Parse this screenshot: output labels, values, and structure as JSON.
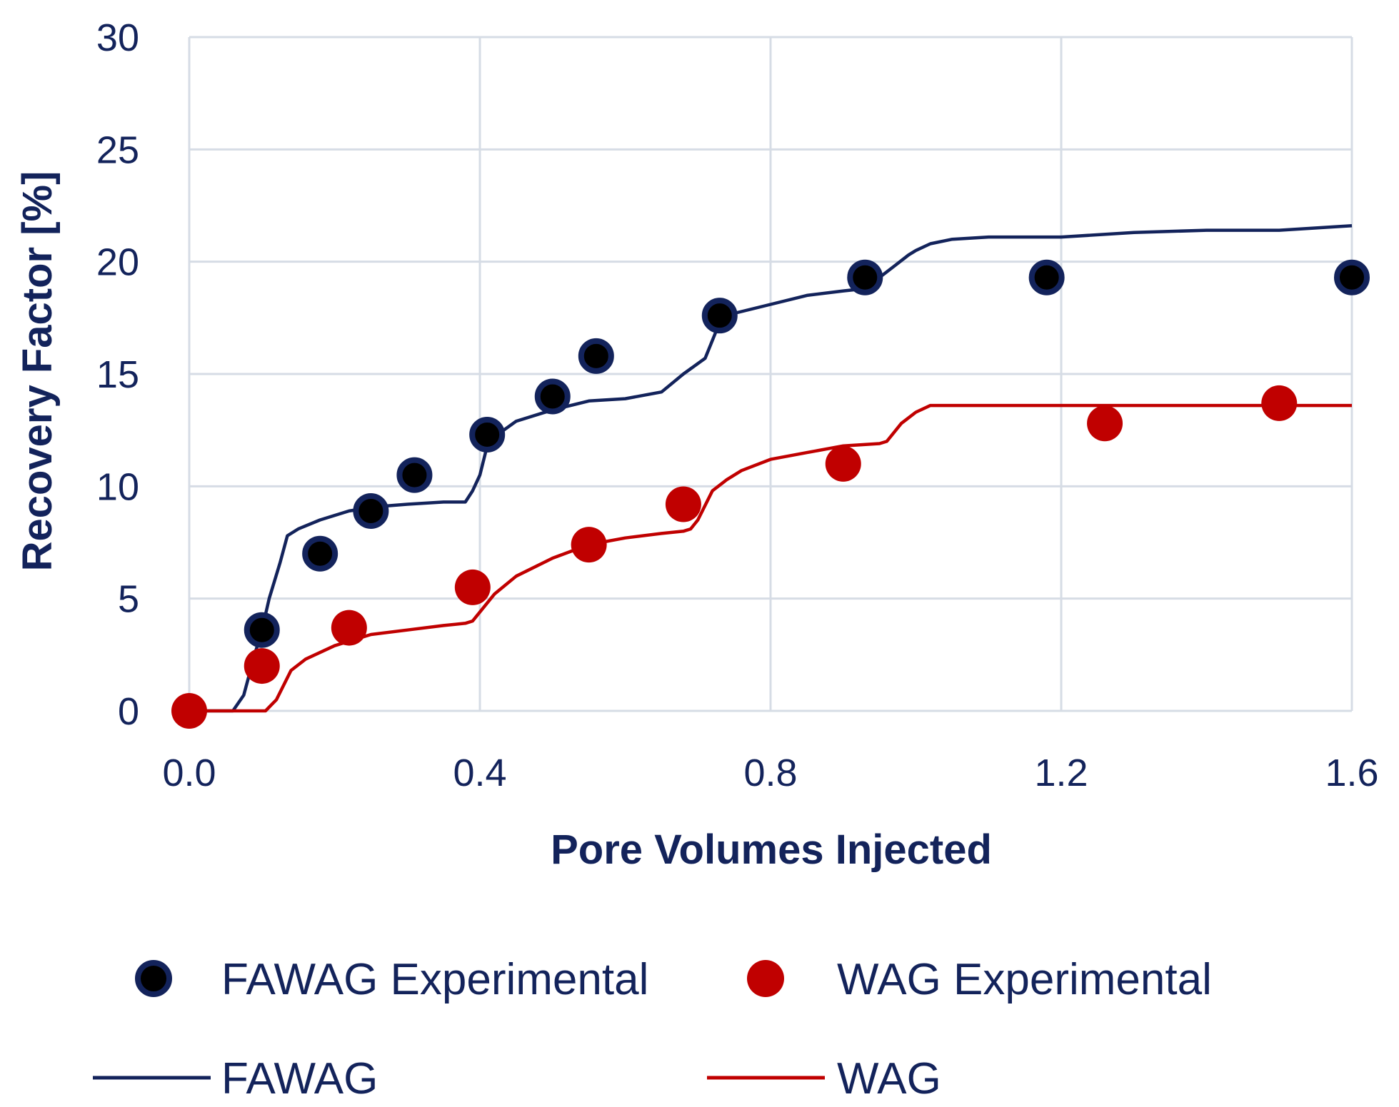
{
  "chart_data": {
    "type": "scatter",
    "xlabel": "Pore Volumes Injected",
    "ylabel": "Recovery Factor [%]",
    "xlim": [
      0,
      1.6
    ],
    "ylim": [
      0,
      30
    ],
    "xticks": [
      "0.0",
      "0.4",
      "0.8",
      "1.2",
      "1.6"
    ],
    "yticks": [
      "0",
      "5",
      "10",
      "15",
      "20",
      "25",
      "30"
    ],
    "xtick_values": [
      0,
      0.4,
      0.8,
      1.2,
      1.6
    ],
    "ytick_values": [
      0,
      5,
      10,
      15,
      20,
      25,
      30
    ],
    "grid": true,
    "legend_position": "bottom",
    "colors": {
      "fawag": "#13235b",
      "wag": "#c00000",
      "marker_center": "#000000",
      "grid": "#d6dce5"
    },
    "series": [
      {
        "name": "FAWAG Experimental",
        "kind": "markers",
        "color": "#13235b",
        "x": [
          0.1,
          0.18,
          0.25,
          0.31,
          0.41,
          0.5,
          0.56,
          0.73,
          0.93,
          1.18,
          1.6
        ],
        "y": [
          3.6,
          7.0,
          8.9,
          10.5,
          12.3,
          14.0,
          15.8,
          17.6,
          19.3,
          19.3,
          19.3
        ]
      },
      {
        "name": "WAG Experimental",
        "kind": "markers",
        "color": "#c00000",
        "x": [
          0.0,
          0.1,
          0.22,
          0.39,
          0.55,
          0.68,
          0.9,
          1.26,
          1.5
        ],
        "y": [
          0.0,
          2.0,
          3.7,
          5.5,
          7.4,
          9.2,
          11.0,
          12.8,
          13.7
        ]
      },
      {
        "name": "FAWAG",
        "kind": "line",
        "color": "#13235b",
        "x": [
          0.0,
          0.06,
          0.075,
          0.09,
          0.1,
          0.11,
          0.125,
          0.135,
          0.15,
          0.18,
          0.22,
          0.26,
          0.3,
          0.35,
          0.38,
          0.39,
          0.4,
          0.41,
          0.42,
          0.45,
          0.5,
          0.55,
          0.6,
          0.65,
          0.68,
          0.71,
          0.72,
          0.73,
          0.75,
          0.8,
          0.85,
          0.9,
          0.93,
          0.95,
          0.97,
          0.99,
          1.0,
          1.02,
          1.05,
          1.1,
          1.2,
          1.3,
          1.4,
          1.5,
          1.6
        ],
        "y": [
          0.0,
          0.0,
          0.7,
          2.5,
          3.6,
          5.0,
          6.6,
          7.8,
          8.1,
          8.5,
          8.9,
          9.1,
          9.2,
          9.3,
          9.3,
          9.8,
          10.5,
          11.8,
          12.2,
          12.9,
          13.4,
          13.8,
          13.9,
          14.2,
          15.0,
          15.7,
          16.5,
          17.3,
          17.7,
          18.1,
          18.5,
          18.7,
          18.8,
          19.3,
          19.8,
          20.3,
          20.5,
          20.8,
          21.0,
          21.1,
          21.1,
          21.3,
          21.4,
          21.4,
          21.6
        ]
      },
      {
        "name": "WAG",
        "kind": "line",
        "color": "#c00000",
        "x": [
          0.0,
          0.105,
          0.12,
          0.14,
          0.16,
          0.2,
          0.25,
          0.3,
          0.35,
          0.38,
          0.39,
          0.42,
          0.45,
          0.5,
          0.55,
          0.6,
          0.65,
          0.68,
          0.69,
          0.7,
          0.72,
          0.74,
          0.76,
          0.8,
          0.85,
          0.9,
          0.95,
          0.96,
          0.98,
          1.0,
          1.02,
          1.1,
          1.2,
          1.3,
          1.4,
          1.5,
          1.6
        ],
        "y": [
          0.0,
          0.0,
          0.5,
          1.8,
          2.3,
          2.9,
          3.4,
          3.6,
          3.8,
          3.9,
          4.0,
          5.2,
          6.0,
          6.8,
          7.4,
          7.7,
          7.9,
          8.0,
          8.1,
          8.5,
          9.8,
          10.3,
          10.7,
          11.2,
          11.5,
          11.8,
          11.9,
          12.0,
          12.8,
          13.3,
          13.6,
          13.6,
          13.6,
          13.6,
          13.6,
          13.6,
          13.6
        ]
      }
    ]
  }
}
